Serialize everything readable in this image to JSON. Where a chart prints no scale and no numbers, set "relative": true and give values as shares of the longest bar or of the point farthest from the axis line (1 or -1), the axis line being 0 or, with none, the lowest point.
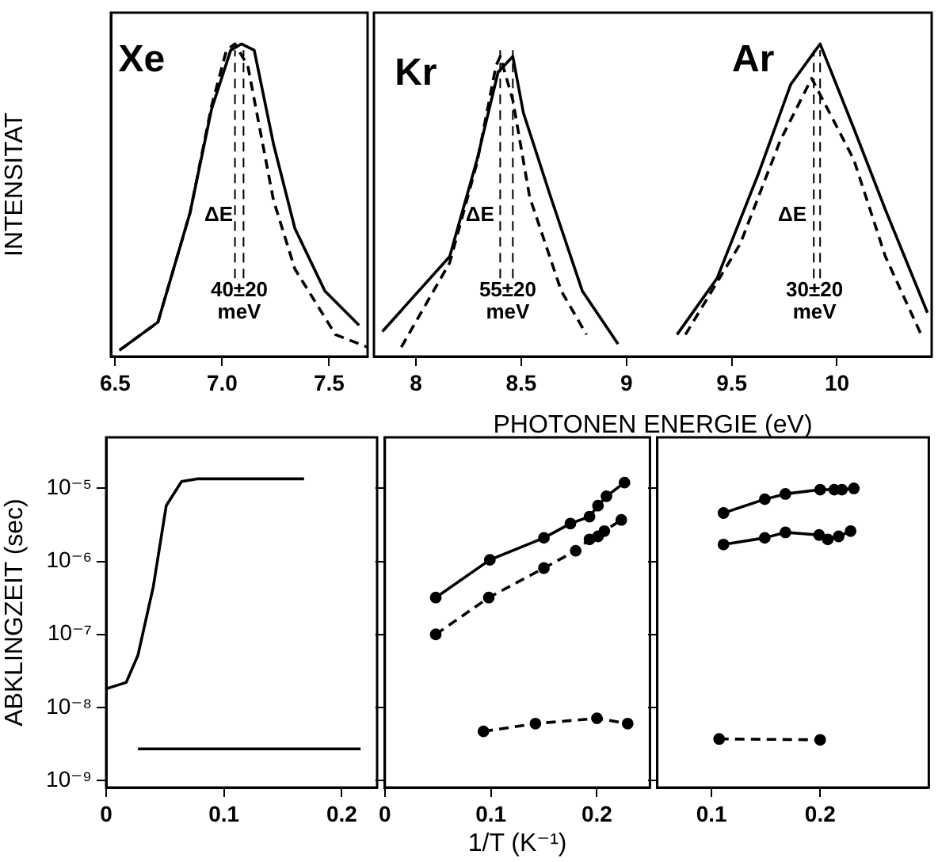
{
  "chart_data": [
    {
      "type": "line",
      "ylabel": "INTENSITAT",
      "relative": true,
      "xlim": [
        6.48,
        7.68
      ],
      "xticks": [
        6.5,
        {
          "value": 7,
          "label": "7.0"
        },
        7.5
      ],
      "tick_labels": "x",
      "marker": "none",
      "legend": false,
      "grid": false,
      "series": [
        {
          "color": "#000000",
          "line_style": "solid",
          "x": [
            6.52,
            6.7,
            6.85,
            6.95,
            7.04,
            7.09,
            7.15,
            7.24,
            7.34,
            7.48,
            7.64
          ],
          "values": [
            0.02,
            0.11,
            0.46,
            0.79,
            0.98,
            1,
            0.98,
            0.68,
            0.41,
            0.21,
            0.1
          ]
        },
        {
          "color": "#000000",
          "line_style": "dashed",
          "x": [
            6.52,
            6.7,
            6.85,
            6.95,
            7.02,
            7.06,
            7.12,
            7.24,
            7.34,
            7.53,
            7.68
          ],
          "values": [
            0.02,
            0.11,
            0.46,
            0.8,
            0.98,
            1,
            0.93,
            0.5,
            0.28,
            0.07,
            0.03
          ]
        }
      ],
      "ref_lines": [
        {
          "axis": "x",
          "value": 7.06,
          "line_style": "dashed",
          "color": "#000000"
        },
        {
          "axis": "x",
          "value": 7.1,
          "line_style": "dashed",
          "color": "#000000"
        }
      ],
      "annotations": [
        "Xe",
        "ΔE",
        "40±20\nmeV"
      ]
    },
    {
      "type": "line",
      "xlabel": "PHOTONEN ENERGIE (eV)",
      "relative": true,
      "xlim": [
        7.8,
        10.45
      ],
      "xticks": [
        8,
        8.5,
        9,
        9.5,
        10
      ],
      "tick_labels": "x",
      "marker": "none",
      "legend": false,
      "grid": false,
      "series": [
        {
          "color": "#000000",
          "line_style": "solid",
          "x": [
            7.84,
            8.16,
            8.29,
            8.39,
            8.46,
            8.51,
            8.64,
            8.79,
            8.96
          ],
          "values": [
            0.08,
            0.32,
            0.63,
            0.91,
            0.96,
            0.78,
            0.51,
            0.21,
            0.04
          ]
        },
        {
          "color": "#000000",
          "line_style": "dashed",
          "x": [
            7.93,
            8.16,
            8.29,
            8.38,
            8.4,
            8.46,
            8.54,
            8.69,
            8.81
          ],
          "values": [
            0.03,
            0.3,
            0.62,
            0.93,
            0.96,
            0.82,
            0.51,
            0.21,
            0.07
          ]
        },
        {
          "color": "#000000",
          "line_style": "solid",
          "x": [
            9.24,
            9.43,
            9.63,
            9.78,
            9.92,
            10.08,
            10.23,
            10.43
          ],
          "values": [
            0.07,
            0.25,
            0.59,
            0.87,
            1,
            0.73,
            0.47,
            0.14
          ]
        },
        {
          "color": "#000000",
          "line_style": "dashed",
          "x": [
            9.28,
            9.54,
            9.73,
            9.88,
            10.08,
            10.23,
            10.4
          ],
          "values": [
            0.07,
            0.36,
            0.69,
            0.89,
            0.63,
            0.32,
            0.07
          ]
        }
      ],
      "ref_lines": [
        {
          "axis": "x",
          "value": 8.4,
          "line_style": "dashed",
          "color": "#000000"
        },
        {
          "axis": "x",
          "value": 8.46,
          "line_style": "dashed",
          "color": "#000000"
        },
        {
          "axis": "x",
          "value": 9.89,
          "line_style": "dashed",
          "color": "#000000"
        },
        {
          "axis": "x",
          "value": 9.92,
          "line_style": "dashed",
          "color": "#000000"
        }
      ],
      "annotations": [
        "Kr",
        "Ar",
        "ΔE",
        "55±20\nmeV",
        "ΔE",
        "30±20\nmeV"
      ]
    },
    {
      "type": "line",
      "ylabel": "ABKLINGZEIT (sec)",
      "log": "y",
      "xlim": [
        0,
        0.23
      ],
      "xticks": [
        0,
        0.1,
        0.2
      ],
      "ylim": [
        8e-10,
        5e-05
      ],
      "yticks": [
        {
          "value": 1e-05,
          "label": "10⁻⁵"
        },
        {
          "value": 1e-06,
          "label": "10⁻⁶"
        },
        {
          "value": 1e-07,
          "label": "10⁻⁷"
        },
        {
          "value": 1e-08,
          "label": "10⁻⁸"
        },
        {
          "value": 1e-09,
          "label": "10⁻⁹"
        }
      ],
      "marker": "none",
      "legend": false,
      "grid": false,
      "series": [
        {
          "color": "#000000",
          "line_style": "solid",
          "x": [
            0,
            0.017,
            0.027,
            0.04,
            0.051,
            0.064,
            0.077,
            0.168
          ],
          "values": [
            1.8e-08,
            2.2e-08,
            5.2e-08,
            4.5e-07,
            5.8e-06,
            1.24e-05,
            1.35e-05,
            1.35e-05
          ]
        },
        {
          "color": "#000000",
          "line_style": "solid",
          "x": [
            0.027,
            0.216
          ],
          "values": [
            2.7e-09,
            2.7e-09
          ]
        }
      ]
    },
    {
      "type": "line",
      "xlabel": "1/T (K⁻¹)",
      "log": "y",
      "xlim": [
        0,
        0.25
      ],
      "xticks": [
        0,
        0.1,
        0.2
      ],
      "ylim": [
        8e-10,
        5e-05
      ],
      "yticks": [
        {
          "value": 1e-05,
          "label": null
        },
        {
          "value": 1e-06,
          "label": null
        },
        {
          "value": 1e-07,
          "label": null
        },
        {
          "value": 1e-08,
          "label": null
        },
        {
          "value": 1e-09,
          "label": null
        }
      ],
      "tick_labels": "x",
      "marker": "circle",
      "legend": false,
      "grid": false,
      "series": [
        {
          "color": "#000000",
          "line_style": "solid",
          "x": [
            0.048,
            0.099,
            0.15,
            0.175,
            0.193,
            0.201,
            0.209,
            0.226
          ],
          "values": [
            3.2e-07,
            1.05e-06,
            2.1e-06,
            3.3e-06,
            4.1e-06,
            5.8e-06,
            7.8e-06,
            1.2e-05
          ]
        },
        {
          "color": "#000000",
          "line_style": "dashed",
          "x": [
            0.048,
            0.098,
            0.15,
            0.18,
            0.193,
            0.201,
            0.207,
            0.223
          ],
          "values": [
            1e-07,
            3.2e-07,
            8.1e-07,
            1.4e-06,
            2e-06,
            2.2e-06,
            2.6e-06,
            3.7e-06
          ]
        },
        {
          "color": "#000000",
          "line_style": "dashed",
          "x": [
            0.093,
            0.142,
            0.2,
            0.229
          ],
          "values": [
            4.7e-09,
            6e-09,
            7.1e-09,
            6e-09
          ]
        }
      ]
    },
    {
      "type": "line",
      "log": "y",
      "xlim": [
        0.05,
        0.3
      ],
      "xticks": [
        0.1,
        0.2
      ],
      "ylim": [
        8e-10,
        5e-05
      ],
      "yticks": [
        {
          "value": 1e-05,
          "label": null
        },
        {
          "value": 1e-06,
          "label": null
        },
        {
          "value": 1e-07,
          "label": null
        },
        {
          "value": 1e-08,
          "label": null
        },
        {
          "value": 1e-09,
          "label": null
        }
      ],
      "tick_labels": "x",
      "marker": "circle",
      "legend": false,
      "grid": false,
      "series": [
        {
          "color": "#000000",
          "line_style": "solid",
          "x": [
            0.111,
            0.149,
            0.168,
            0.2,
            0.213,
            0.22,
            0.231
          ],
          "values": [
            4.6e-06,
            7.1e-06,
            8.4e-06,
            9.6e-06,
            9.6e-06,
            9.6e-06,
            1e-05
          ]
        },
        {
          "color": "#000000",
          "line_style": "solid",
          "x": [
            0.111,
            0.149,
            0.168,
            0.199,
            0.207,
            0.217,
            0.228
          ],
          "values": [
            1.7e-06,
            2.1e-06,
            2.5e-06,
            2.3e-06,
            2e-06,
            2.2e-06,
            2.6e-06
          ]
        },
        {
          "color": "#000000",
          "line_style": "dashed",
          "x": [
            0.107,
            0.2
          ],
          "values": [
            3.7e-09,
            3.6e-09
          ]
        }
      ]
    }
  ]
}
